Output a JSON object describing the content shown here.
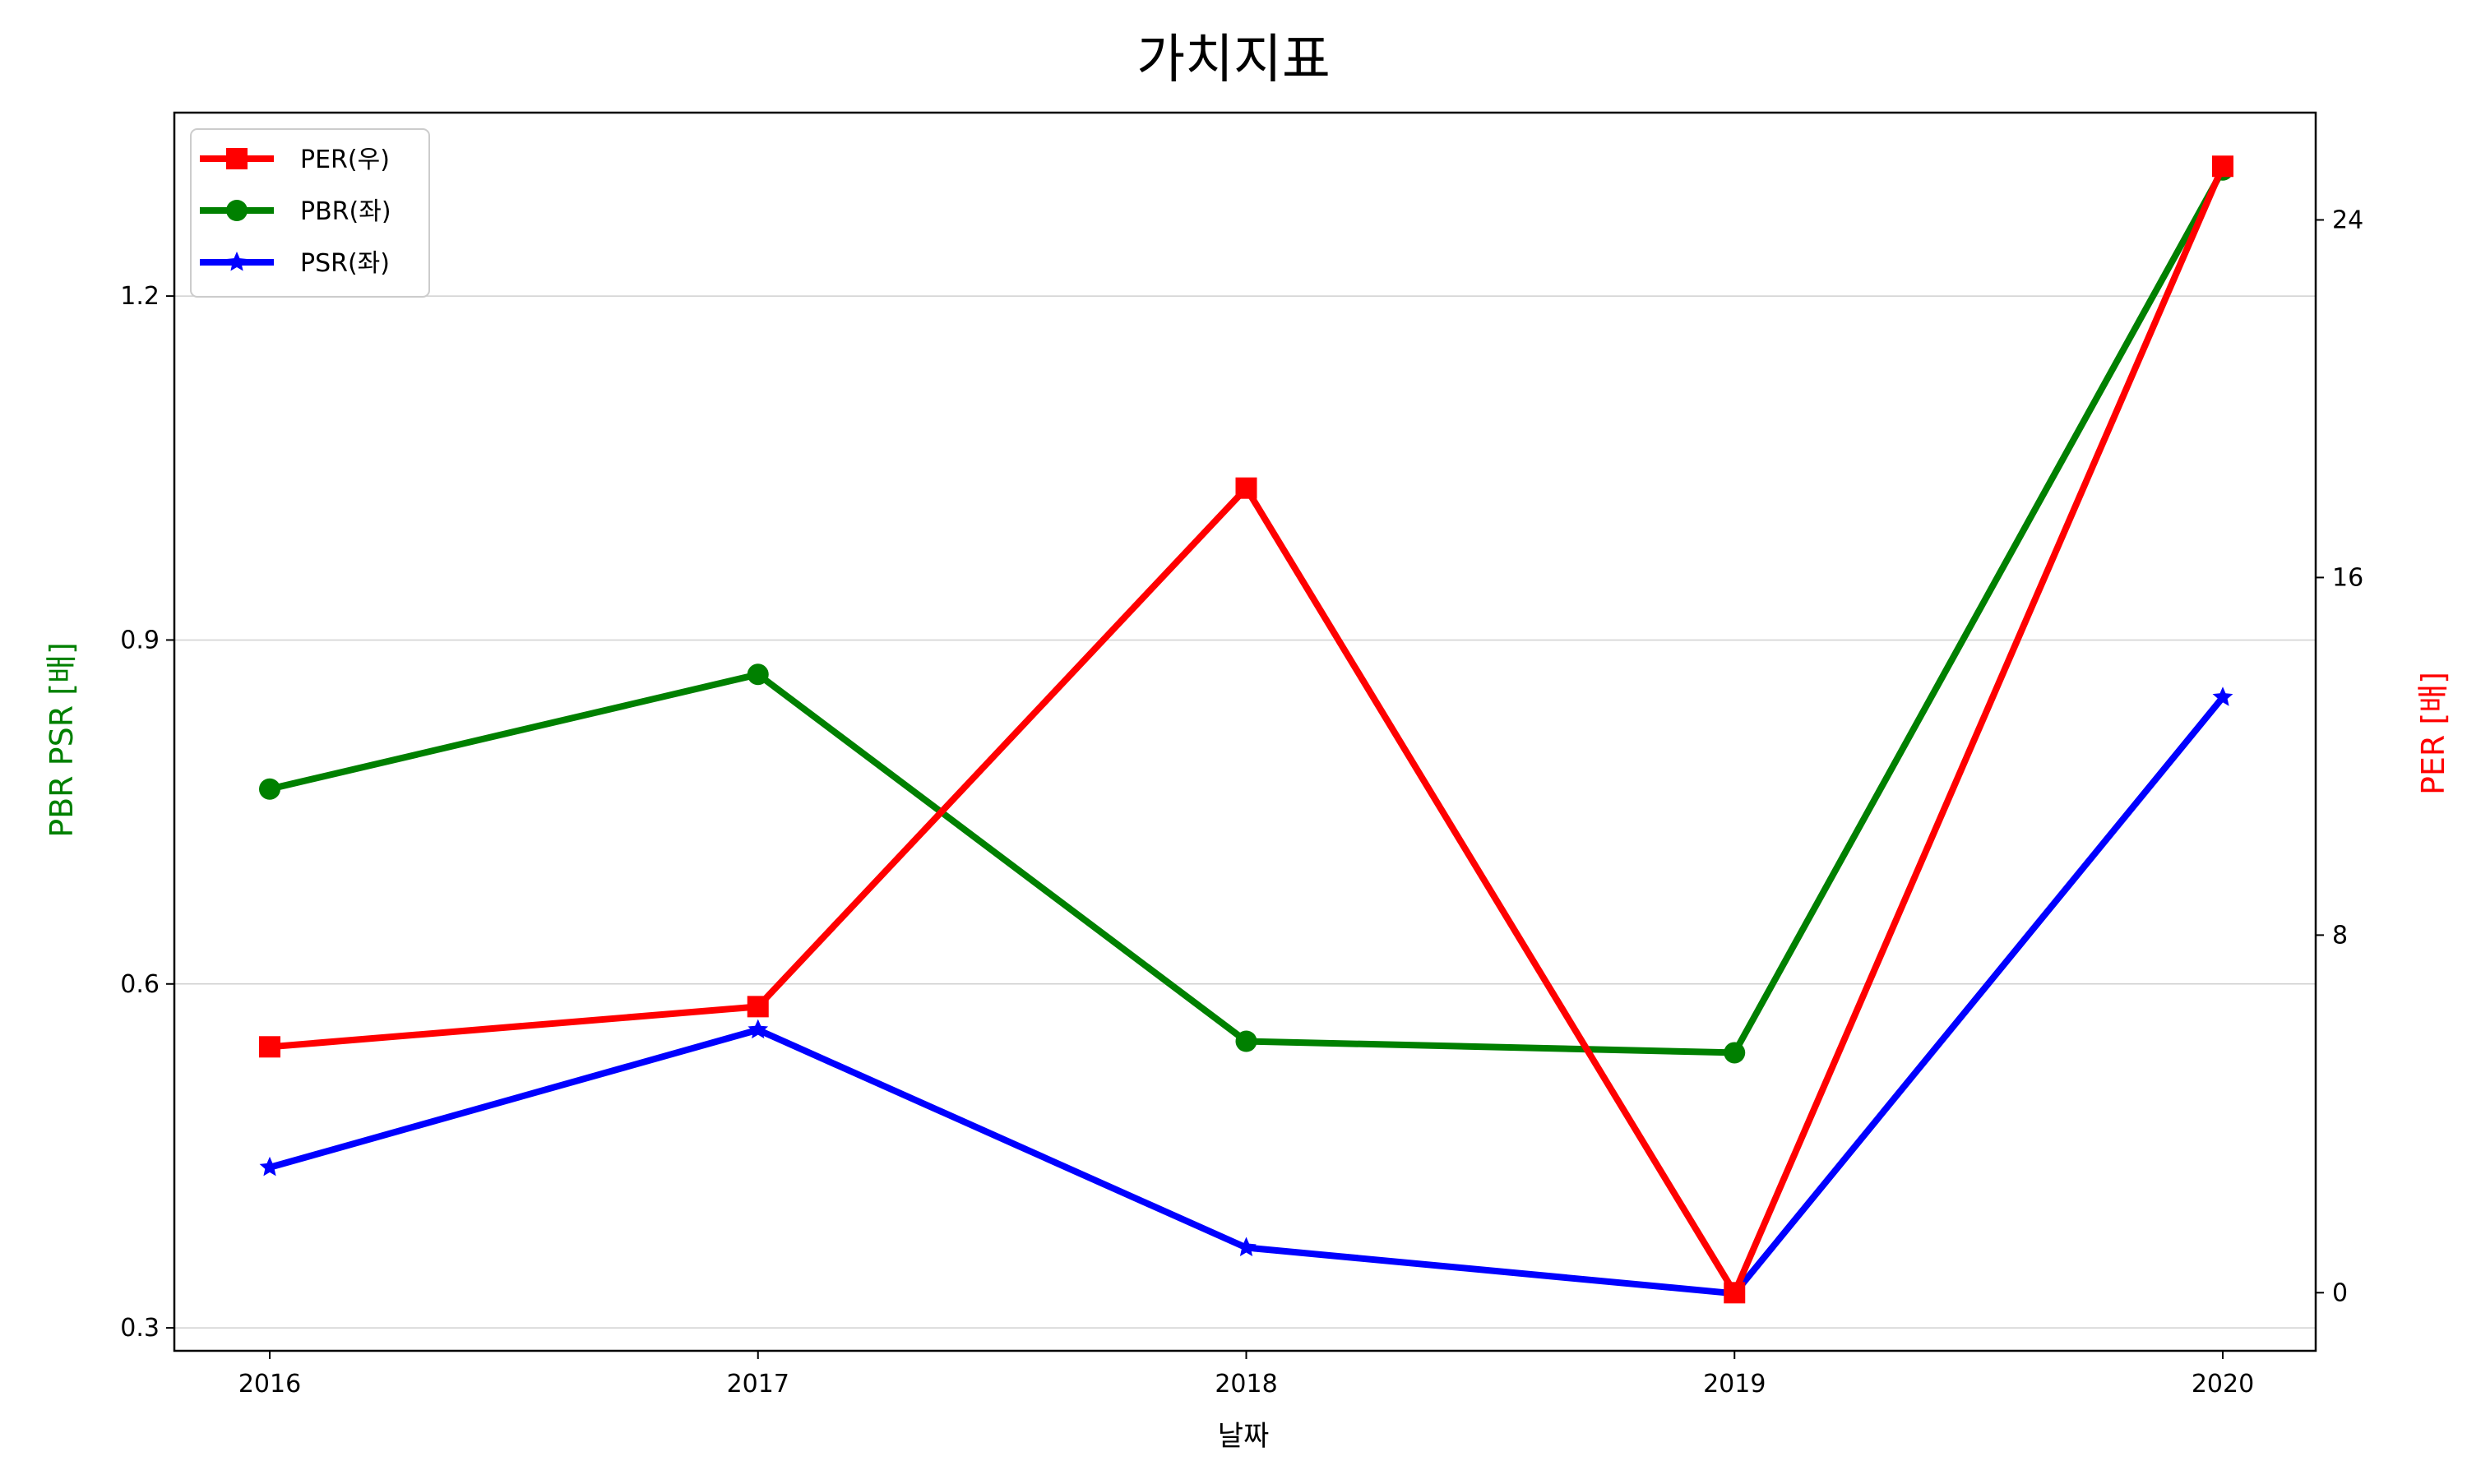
{
  "chart_data": {
    "type": "line",
    "title": "가치지표",
    "xlabel": "날짜",
    "ylabel_left": "PBR PSR [배]",
    "ylabel_right": "PER [배]",
    "ylabel_left_color": "#008000",
    "ylabel_right_color": "#ff0000",
    "categories": [
      "2016",
      "2017",
      "2018",
      "2019",
      "2020"
    ],
    "left_axis": {
      "ylim": [
        0.28,
        1.36
      ],
      "ticks": [
        0.3,
        0.6,
        0.9,
        1.2
      ],
      "tick_labels": [
        "0.3",
        "0.6",
        "0.9",
        "1.2"
      ]
    },
    "right_axis": {
      "ylim": [
        -1.3,
        26.4
      ],
      "ticks": [
        0,
        8,
        16,
        24
      ],
      "tick_labels": [
        "0",
        "8",
        "16",
        "24"
      ]
    },
    "grid": "horizontal (left axis)",
    "legend_position": "top-left",
    "series": [
      {
        "name": "PER(우)",
        "axis": "right",
        "color": "#ff0000",
        "marker": "square",
        "values": [
          5.5,
          6.4,
          18.0,
          0.0,
          25.2
        ]
      },
      {
        "name": "PBR(좌)",
        "axis": "left",
        "color": "#008000",
        "marker": "circle",
        "values": [
          0.77,
          0.87,
          0.55,
          0.54,
          1.31
        ]
      },
      {
        "name": "PSR(좌)",
        "axis": "left",
        "color": "#0000ff",
        "marker": "star",
        "values": [
          0.44,
          0.56,
          0.37,
          0.33,
          0.85
        ]
      }
    ]
  }
}
